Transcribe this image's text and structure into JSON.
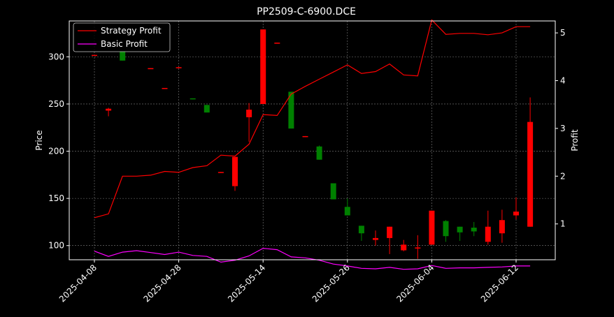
{
  "chart_data": {
    "type": "candlestick+line",
    "title": "PP2509-C-6900.DCE",
    "xlabel": "",
    "ylabel": "Price",
    "y2label": "Profit",
    "ylim": [
      85,
      338
    ],
    "y2lim": [
      0.25,
      5.25
    ],
    "yticks": [
      100,
      150,
      200,
      250,
      300
    ],
    "y2ticks": [
      1,
      2,
      3,
      4,
      5
    ],
    "grid": true,
    "legend_position": "top-left",
    "x_tick_labels": [
      "2025-04-08",
      "2025-04-28",
      "2025-05-14",
      "2025-05-26",
      "2025-06-04",
      "2025-06-12"
    ],
    "x_tick_positions": [
      0,
      6,
      12,
      18,
      24,
      30
    ],
    "colors": {
      "up": "#ff0000",
      "down": "#008000",
      "strategy": "#ff0000",
      "basic": "#ff00ff",
      "background": "#000000",
      "text": "#ffffff"
    },
    "candles": [
      {
        "i": 0,
        "open": 301,
        "close": 302,
        "high": 302,
        "low": 301
      },
      {
        "i": 1,
        "open": 243,
        "close": 245,
        "high": 246,
        "low": 237
      },
      {
        "i": 2,
        "open": 306,
        "close": 296,
        "high": 306,
        "low": 296
      },
      {
        "i": 4,
        "open": 287,
        "close": 288,
        "high": 288,
        "low": 287
      },
      {
        "i": 5,
        "open": 266,
        "close": 267,
        "high": 267,
        "low": 266
      },
      {
        "i": 6,
        "open": 288,
        "close": 289,
        "high": 289,
        "low": 288
      },
      {
        "i": 7,
        "open": 256,
        "close": 255,
        "high": 256,
        "low": 255
      },
      {
        "i": 8,
        "open": 249,
        "close": 241,
        "high": 249,
        "low": 241
      },
      {
        "i": 9,
        "open": 177,
        "close": 178,
        "high": 178,
        "low": 177
      },
      {
        "i": 10,
        "open": 163,
        "close": 194,
        "high": 194,
        "low": 158
      },
      {
        "i": 11,
        "open": 236,
        "close": 244,
        "high": 251,
        "low": 210
      },
      {
        "i": 12,
        "open": 250,
        "close": 329,
        "high": 329,
        "low": 250
      },
      {
        "i": 13,
        "open": 314,
        "close": 315,
        "high": 315,
        "low": 314
      },
      {
        "i": 14,
        "open": 263,
        "close": 224,
        "high": 263,
        "low": 224
      },
      {
        "i": 15,
        "open": 215,
        "close": 216,
        "high": 216,
        "low": 215
      },
      {
        "i": 16,
        "open": 205,
        "close": 191,
        "high": 206,
        "low": 191
      },
      {
        "i": 17,
        "open": 166,
        "close": 149,
        "high": 166,
        "low": 149
      },
      {
        "i": 18,
        "open": 141,
        "close": 132,
        "high": 150,
        "low": 132
      },
      {
        "i": 19,
        "open": 121,
        "close": 113,
        "high": 121,
        "low": 105
      },
      {
        "i": 20,
        "open": 106,
        "close": 108,
        "high": 116,
        "low": 100
      },
      {
        "i": 21,
        "open": 108,
        "close": 120,
        "high": 120,
        "low": 91
      },
      {
        "i": 22,
        "open": 95,
        "close": 101,
        "high": 106,
        "low": 94
      },
      {
        "i": 23,
        "open": 97,
        "close": 98,
        "high": 111,
        "low": 86
      },
      {
        "i": 24,
        "open": 101,
        "close": 137,
        "high": 137,
        "low": 101
      },
      {
        "i": 25,
        "open": 126,
        "close": 110,
        "high": 127,
        "low": 104
      },
      {
        "i": 26,
        "open": 120,
        "close": 114,
        "high": 120,
        "low": 105
      },
      {
        "i": 27,
        "open": 119,
        "close": 115,
        "high": 125,
        "low": 110
      },
      {
        "i": 28,
        "open": 104,
        "close": 120,
        "high": 137,
        "low": 101
      },
      {
        "i": 29,
        "open": 113,
        "close": 127,
        "high": 138,
        "low": 103
      },
      {
        "i": 30,
        "open": 132,
        "close": 136,
        "high": 151,
        "low": 128
      },
      {
        "i": 31,
        "open": 120,
        "close": 231,
        "high": 257,
        "low": 120
      }
    ],
    "series": [
      {
        "name": "Strategy Profit",
        "axis": "right",
        "values": [
          1.13,
          1.21,
          2.0,
          2.0,
          2.02,
          2.1,
          2.08,
          2.18,
          2.22,
          2.44,
          2.42,
          2.67,
          3.29,
          3.27,
          3.72,
          3.88,
          4.03,
          4.18,
          4.33,
          4.15,
          4.19,
          4.35,
          4.12,
          4.1,
          5.27,
          4.97,
          4.99,
          4.99,
          4.96,
          5.0,
          5.13,
          5.13
        ]
      },
      {
        "name": "Basic Profit",
        "axis": "right",
        "values": [
          0.43,
          0.32,
          0.41,
          0.44,
          0.4,
          0.36,
          0.41,
          0.34,
          0.32,
          0.2,
          0.24,
          0.33,
          0.49,
          0.46,
          0.31,
          0.29,
          0.24,
          0.16,
          0.12,
          0.07,
          0.06,
          0.09,
          0.05,
          0.06,
          0.13,
          0.07,
          0.08,
          0.08,
          0.09,
          0.1,
          0.12,
          0.12
        ]
      }
    ]
  }
}
